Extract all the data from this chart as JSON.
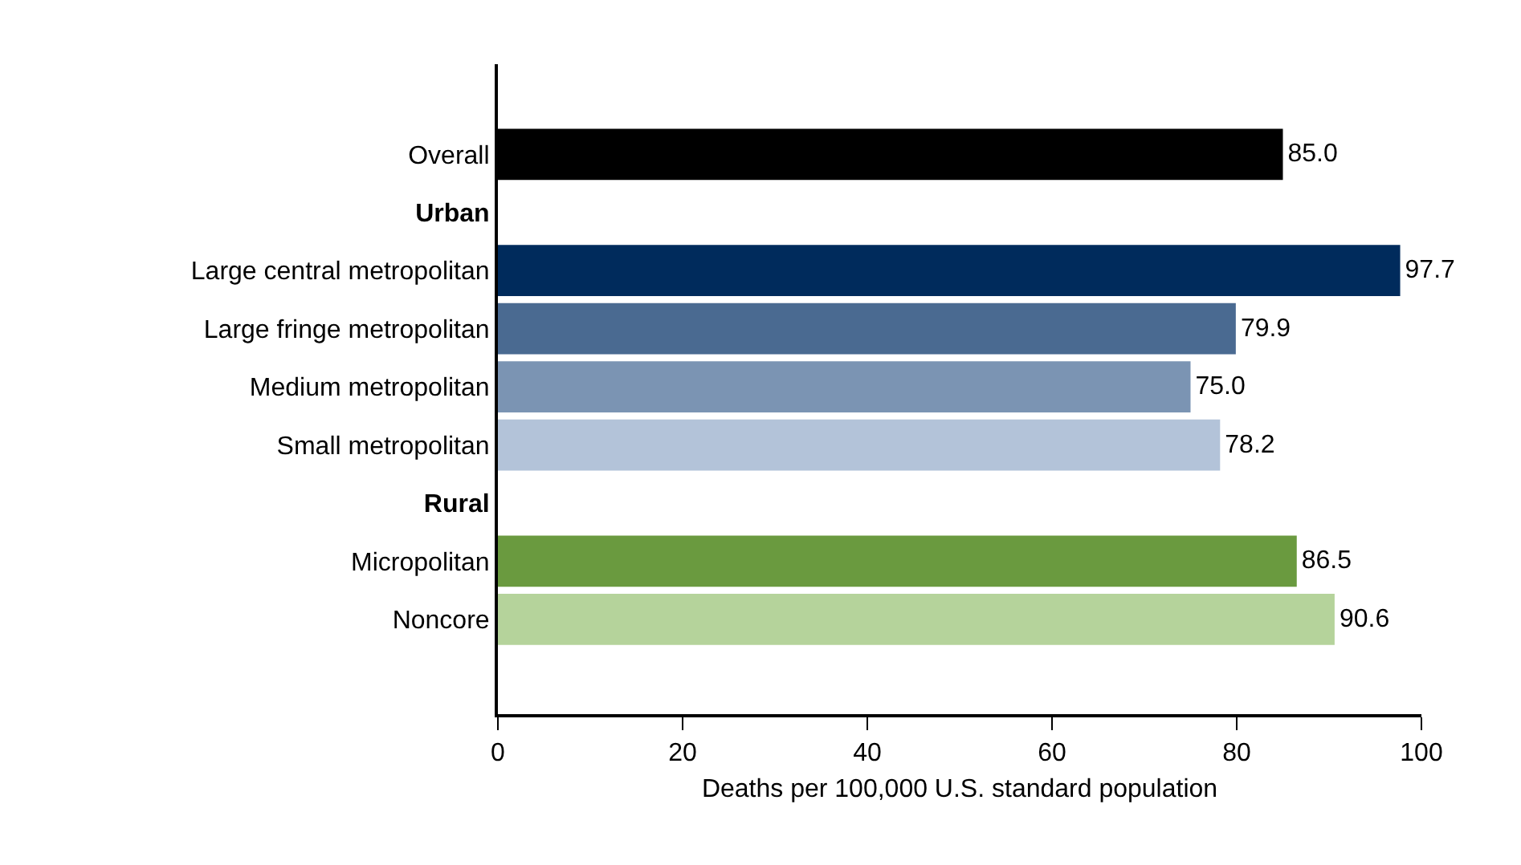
{
  "chart_data": {
    "type": "bar",
    "orientation": "horizontal",
    "categories": [
      "Overall",
      "Urban",
      "Large central metropolitan",
      "Large fringe metropolitan",
      "Medium metropolitan",
      "Small metropolitan",
      "Rural",
      "Micropolitan",
      "Noncore"
    ],
    "values": [
      85.0,
      null,
      97.7,
      79.9,
      75.0,
      78.2,
      null,
      86.5,
      90.6
    ],
    "value_labels": [
      "85.0",
      null,
      "97.7",
      "79.9",
      "75.0",
      "78.2",
      null,
      "86.5",
      "90.6"
    ],
    "colors": [
      "#000000",
      "#ffffff",
      "#002b5c",
      "#4a6a91",
      "#7b94b3",
      "#b3c3d9",
      "#ffffff",
      "#6a9a3f",
      "#b5d39b"
    ],
    "xlabel": "Deaths per 100,000 U.S. standard population",
    "xlim": [
      0,
      100
    ],
    "xticks": [
      0,
      20,
      40,
      60,
      80,
      100
    ],
    "grid": false,
    "legend": false
  }
}
